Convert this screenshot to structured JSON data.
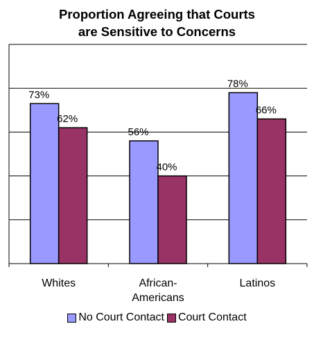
{
  "chart_data": {
    "type": "bar",
    "title_lines": [
      "Proportion Agreeing that Courts",
      "are Sensitive to Concerns"
    ],
    "categories": [
      [
        "Whites"
      ],
      [
        "African-",
        "Americans"
      ],
      [
        "Latinos"
      ]
    ],
    "series": [
      {
        "name": "No Court Contact",
        "color": "#9999FF",
        "values": [
          73,
          56,
          78
        ],
        "labels": [
          "73%",
          "56%",
          "78%"
        ]
      },
      {
        "name": "Court Contact",
        "color": "#993366",
        "values": [
          62,
          40,
          66
        ],
        "labels": [
          "62%",
          "40%",
          "66%"
        ]
      }
    ],
    "ylim": [
      0,
      100
    ],
    "gridlines": true,
    "legend_position": "bottom"
  }
}
